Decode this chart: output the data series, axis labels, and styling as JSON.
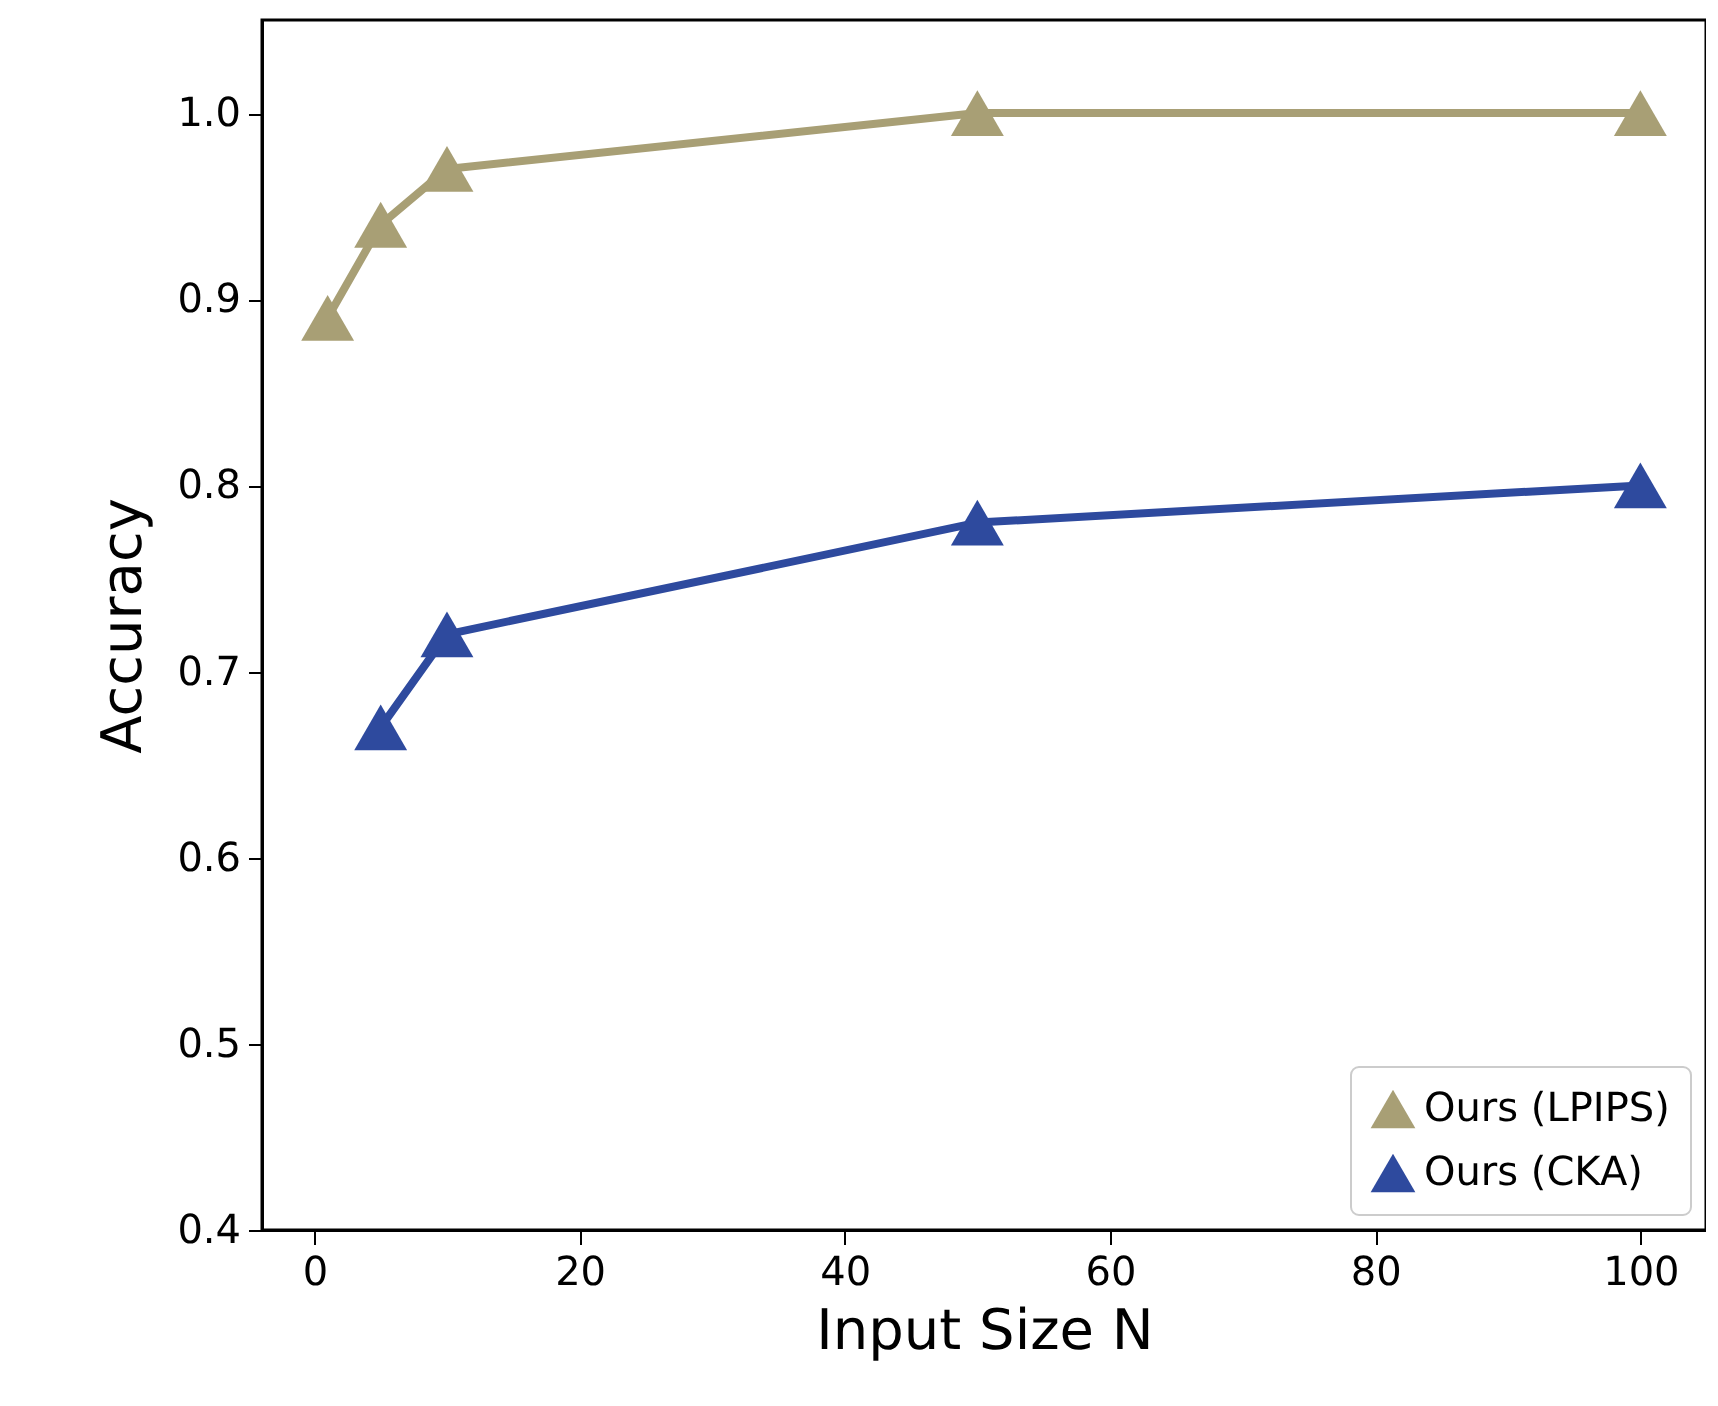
{
  "chart_data": {
    "type": "line",
    "xlabel": "Input Size N",
    "ylabel": "Accuracy",
    "series": [
      {
        "name": "Ours (LPIPS)",
        "color": "#a89f75",
        "x": [
          1,
          5,
          10,
          50,
          100
        ],
        "values": [
          0.89,
          0.94,
          0.97,
          1.0,
          1.0
        ]
      },
      {
        "name": "Ours (CKA)",
        "color": "#2e4a9e",
        "x": [
          5,
          10,
          50,
          100
        ],
        "values": [
          0.67,
          0.72,
          0.78,
          0.8
        ]
      }
    ],
    "xlim": [
      -3.95,
      104.95
    ],
    "xticks": [
      0,
      20,
      40,
      60,
      80,
      100
    ],
    "ylim": [
      0.4,
      1.05
    ],
    "yticks": [
      0.4,
      0.5,
      0.6,
      0.7,
      0.8,
      0.9,
      {
        "value": 1,
        "label": "1.0"
      }
    ],
    "grid": false,
    "legend": "bottom right",
    "marker": "triangle",
    "line_style": "solid"
  }
}
